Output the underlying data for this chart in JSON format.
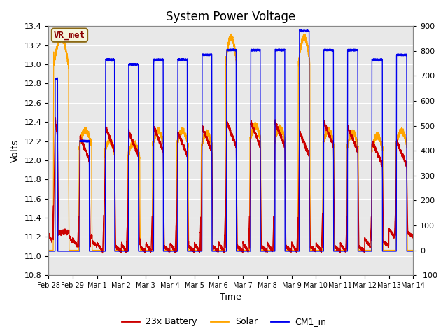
{
  "title": "System Power Voltage",
  "xlabel": "Time",
  "ylabel": "Volts",
  "ylim_left": [
    10.8,
    13.4
  ],
  "ylim_right": [
    -100,
    900
  ],
  "background_color": "#ffffff",
  "plot_bg_color": "#e8e8e8",
  "annotation_text": "VR_met",
  "annotation_color": "#8B0000",
  "annotation_bg": "#f5f5dc",
  "annotation_border": "#8B6914",
  "line_colors": {
    "battery": "#cc0000",
    "solar": "#ffa500",
    "cm1": "#0000ee"
  },
  "legend_labels": [
    "23x Battery",
    "Solar",
    "CM1_in"
  ],
  "xtick_labels": [
    "Feb 28",
    "Feb 29",
    "Mar 1",
    "Mar 2",
    "Mar 3",
    "Mar 4",
    "Mar 5",
    "Mar 6",
    "Mar 7",
    "Mar 8",
    "Mar 9",
    "Mar 10",
    "Mar 11",
    "Mar 12",
    "Mar 13",
    "Mar 14"
  ],
  "yticks_left": [
    10.8,
    11.0,
    11.2,
    11.4,
    11.6,
    11.8,
    12.0,
    12.2,
    12.4,
    12.6,
    12.8,
    13.0,
    13.2,
    13.4
  ],
  "yticks_right": [
    -100,
    0,
    100,
    200,
    300,
    400,
    500,
    600,
    700,
    800,
    900
  ],
  "n_days": 15,
  "n_per_day": 288
}
